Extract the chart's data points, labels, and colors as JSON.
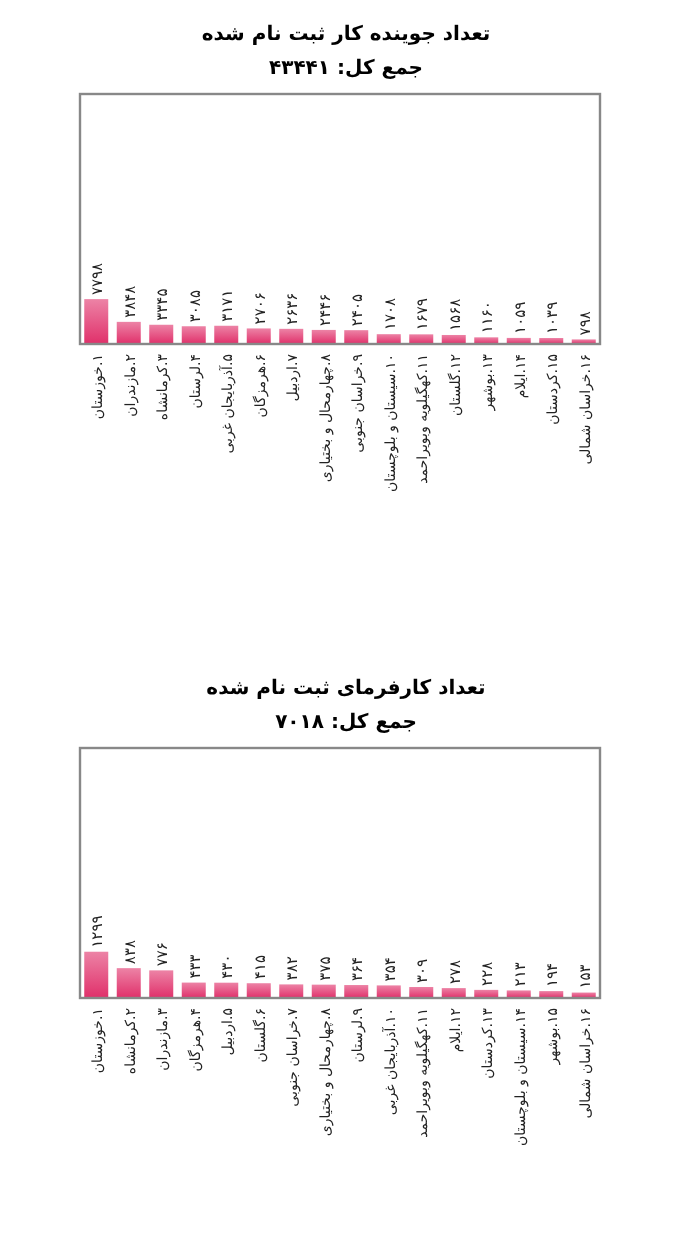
{
  "chart_data": [
    {
      "type": "bar",
      "title": "تعداد جوینده کار ثبت نام شده",
      "subtitle": "جمع کل: ۴۳۴۴۱",
      "categories": [
        "۱.خوزستان",
        "۲.مازندران",
        "۳.کرمانشاه",
        "۴.لرستان",
        "۵.آذربایجان غربی",
        "۶.هرمزگان",
        "۷.اردبیل",
        "۸.چهارمحال و بختیاری",
        "۹.خراسان جنوبی",
        "۱۰.سیستان و بلوچستان",
        "۱۱.کهگیلویه وبویراحمد",
        "۱۲.گلستان",
        "۱۳.بوشهر",
        "۱۴.ایلام",
        "۱۵.کردستان",
        "۱۶.خراسان شمالی"
      ],
      "values": [
        7798,
        3848,
        3345,
        3085,
        3171,
        2706,
        2636,
        2446,
        2405,
        1708,
        1679,
        1568,
        1160,
        1059,
        1039,
        798
      ],
      "value_labels": [
        "۷۷۹۸",
        "۳۸۴۸",
        "۳۳۴۵",
        "۳۰۸۵",
        "۳۱۷۱",
        "۲۷۰۶",
        "۲۶۳۶",
        "۲۴۴۶",
        "۲۴۰۵",
        "۱۷۰۸",
        "۱۶۷۹",
        "۱۵۶۸",
        "۱۱۶۰",
        "۱۰۵۹",
        "۱۰۳۹",
        "۷۹۸"
      ],
      "color": "#e0306a",
      "ylim": [
        0,
        43441
      ]
    },
    {
      "type": "bar",
      "title": "تعداد کارفرمای ثبت نام شده",
      "subtitle": "جمع کل: ۷۰۱۸",
      "categories": [
        "۱.خوزستان",
        "۲.کرمانشاه",
        "۳.مازندران",
        "۴.هرمزگان",
        "۵.اردبیل",
        "۶.گلستان",
        "۷.خراسان جنوبی",
        "۸.چهارمحال و بختیاری",
        "۹.لرستان",
        "۱۰.آذربایجان غربی",
        "۱۱.کهگیلویه وبویراحمد",
        "۱۲.ایلام",
        "۱۳.کردستان",
        "۱۴.سیستان و بلوچستان",
        "۱۵.بوشهر",
        "۱۶.خراسان شمالی"
      ],
      "values": [
        1299,
        838,
        776,
        433,
        430,
        415,
        382,
        375,
        364,
        354,
        309,
        278,
        228,
        213,
        194,
        153
      ],
      "value_labels": [
        "۱۲۹۹",
        "۸۳۸",
        "۷۷۶",
        "۴۳۳",
        "۴۳۰",
        "۴۱۵",
        "۳۸۲",
        "۳۷۵",
        "۳۶۴",
        "۳۵۴",
        "۳۰۹",
        "۲۷۸",
        "۲۲۸",
        "۲۱۳",
        "۱۹۴",
        "۱۵۳"
      ],
      "color": "#e0306a",
      "ylim": [
        0,
        7018
      ]
    }
  ]
}
